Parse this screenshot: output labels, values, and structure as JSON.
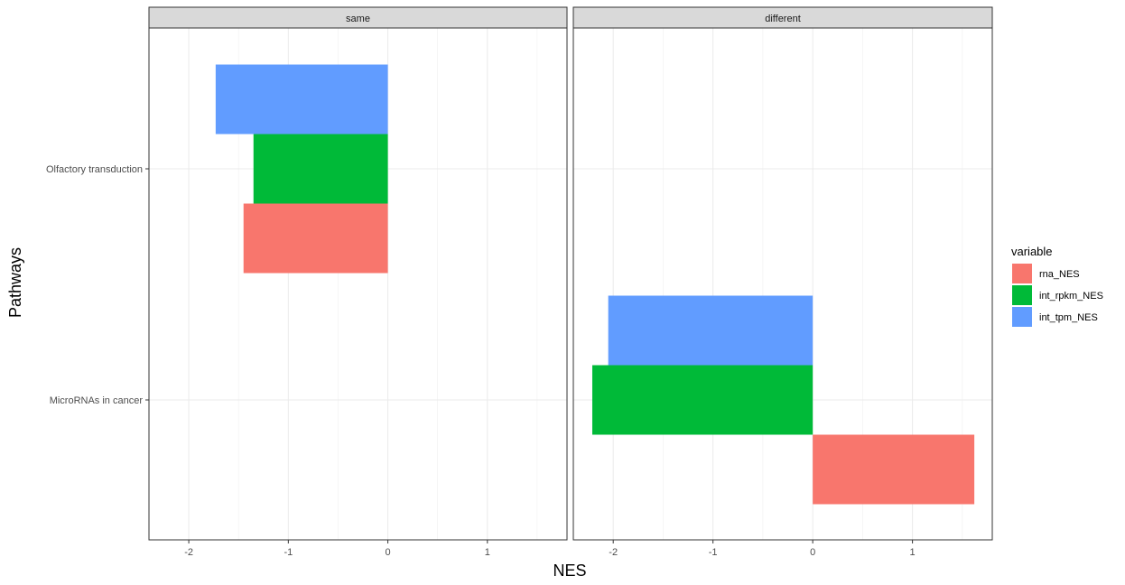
{
  "chart_data": {
    "type": "bar",
    "orientation": "horizontal",
    "xlabel": "NES",
    "ylabel": "Pathways",
    "xlim": [
      -2.4,
      1.8
    ],
    "x_ticks": [
      -2,
      -1,
      0,
      1
    ],
    "categories": [
      "Olfactory transduction",
      "MicroRNAs in cancer"
    ],
    "grid": true,
    "legend": {
      "title": "variable",
      "position": "right",
      "entries": [
        {
          "name": "rna_NES",
          "color": "#F8766D"
        },
        {
          "name": "int_rpkm_NES",
          "color": "#00BA38"
        },
        {
          "name": "int_tpm_NES",
          "color": "#619CFF"
        }
      ]
    },
    "facets": [
      {
        "label": "same",
        "bars": [
          {
            "category": "Olfactory transduction",
            "series": "rna_NES",
            "value": -1.45
          },
          {
            "category": "Olfactory transduction",
            "series": "int_rpkm_NES",
            "value": -1.35
          },
          {
            "category": "Olfactory transduction",
            "series": "int_tpm_NES",
            "value": -1.73
          }
        ]
      },
      {
        "label": "different",
        "bars": [
          {
            "category": "MicroRNAs in cancer",
            "series": "rna_NES",
            "value": 1.62
          },
          {
            "category": "MicroRNAs in cancer",
            "series": "int_rpkm_NES",
            "value": -2.21
          },
          {
            "category": "MicroRNAs in cancer",
            "series": "int_tpm_NES",
            "value": -2.05
          }
        ]
      }
    ]
  }
}
